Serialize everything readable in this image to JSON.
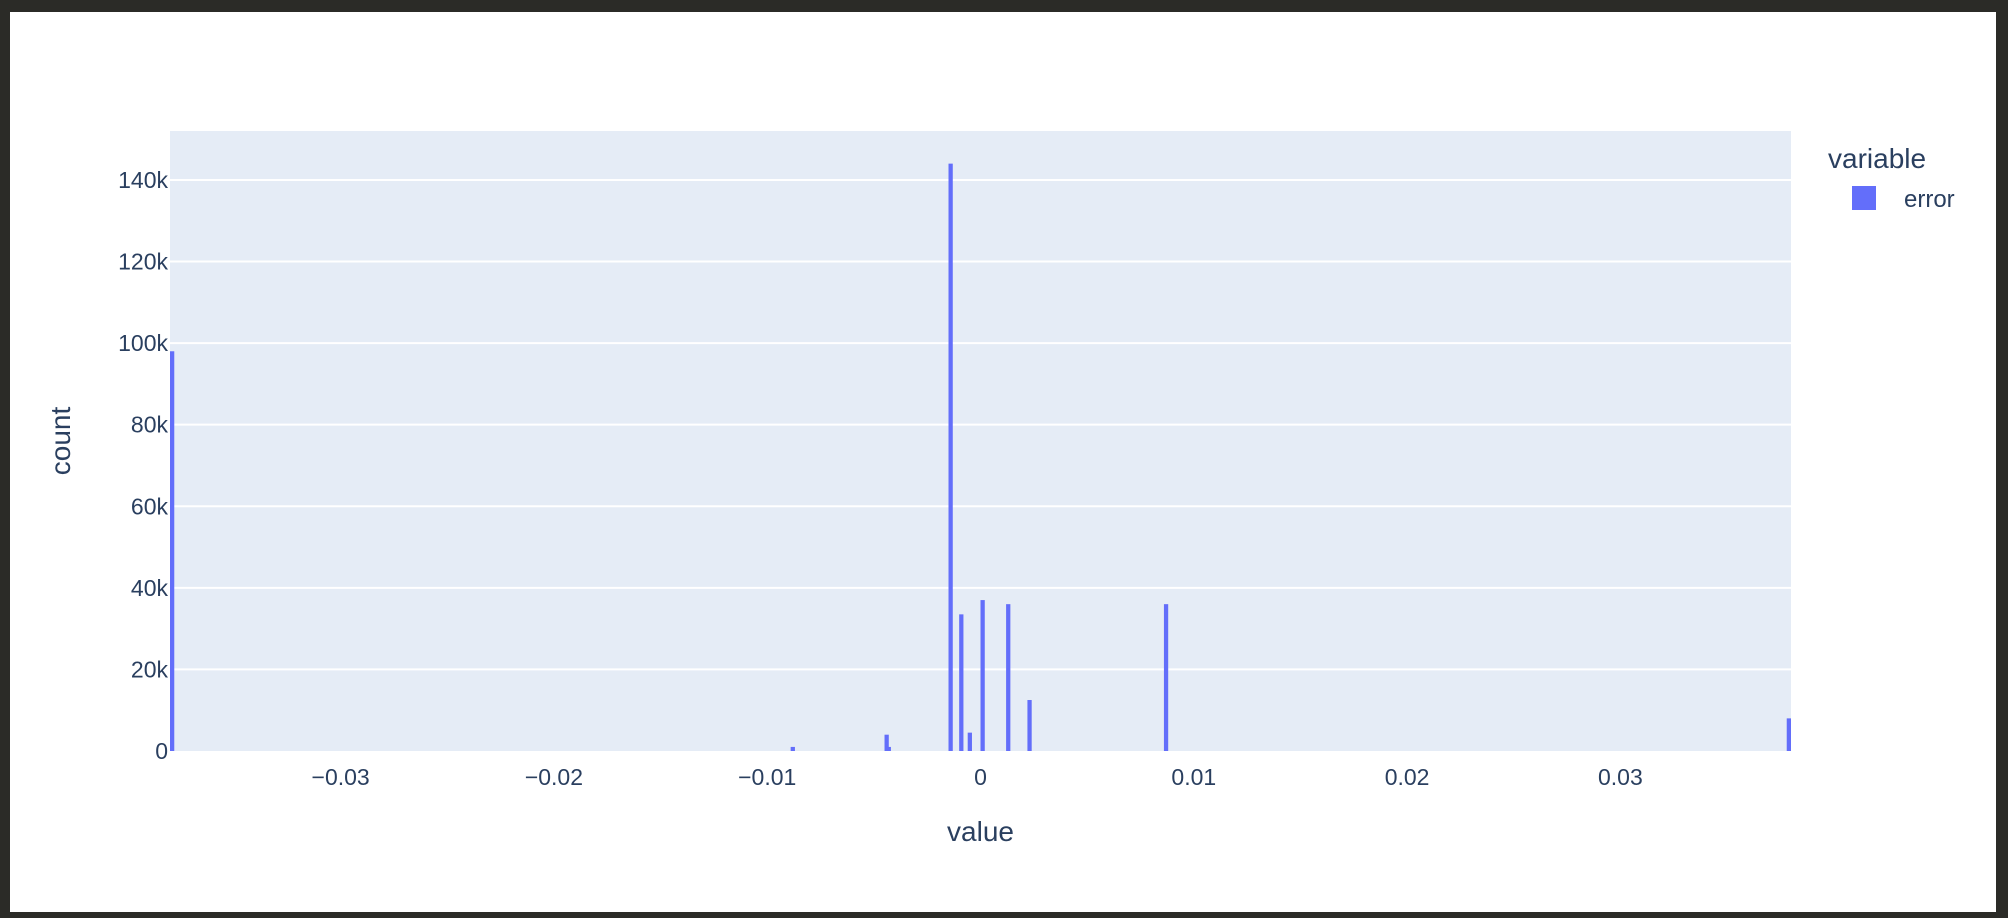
{
  "chart_data": {
    "type": "bar",
    "subtype": "histogram",
    "xlabel": "value",
    "ylabel": "count",
    "xlim": [
      -0.038,
      0.038
    ],
    "ylim": [
      0,
      152000
    ],
    "x_ticks": [
      -0.03,
      -0.02,
      -0.01,
      0,
      0.01,
      0.02,
      0.03
    ],
    "x_tick_labels": [
      "−0.03",
      "−0.02",
      "−0.01",
      "0",
      "0.01",
      "0.02",
      "0.03"
    ],
    "y_ticks": [
      0,
      20000,
      40000,
      60000,
      80000,
      100000,
      120000,
      140000
    ],
    "y_tick_labels": [
      "0",
      "20k",
      "40k",
      "60k",
      "80k",
      "100k",
      "120k",
      "140k"
    ],
    "grid": true,
    "legend": {
      "title": "variable",
      "placement": "top-right",
      "entries": [
        "error"
      ]
    },
    "series": [
      {
        "name": "error",
        "color": "#636efa",
        "bin_width": 0.0002,
        "x": [
          -0.0379,
          -0.0088,
          -0.0044,
          -0.0043,
          -0.0014,
          -0.0009,
          -0.0005,
          0.0001,
          0.0013,
          0.0023,
          0.0087,
          0.0379
        ],
        "values": [
          98000,
          1000,
          4000,
          1000,
          144000,
          33500,
          4500,
          37000,
          36000,
          12500,
          36000,
          8000
        ]
      }
    ]
  }
}
